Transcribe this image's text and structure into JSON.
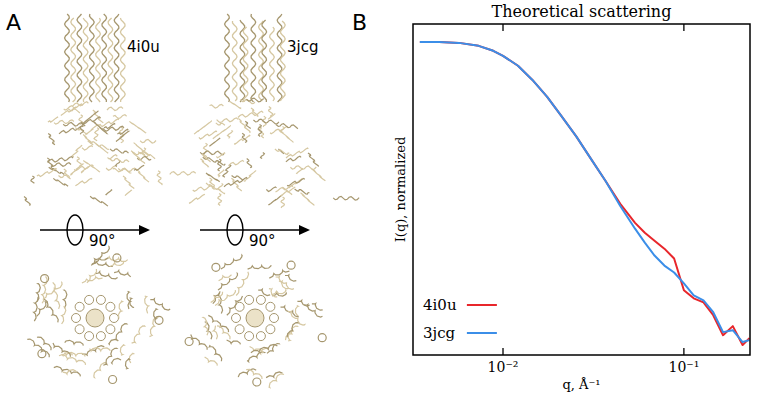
{
  "panel_a": {
    "letter": "A",
    "structures": [
      {
        "label": "4i0u",
        "rotation": "90°"
      },
      {
        "label": "3jcg",
        "rotation": "90°"
      }
    ]
  },
  "panel_b": {
    "letter": "B"
  },
  "chart_data": {
    "type": "line",
    "title": "Theoretical scattering",
    "x_label": "q, Å⁻¹",
    "y_label": "I(q), normalized",
    "x": [
      0.00347,
      0.00445,
      0.00571,
      0.00733,
      0.00883,
      0.01,
      0.0121,
      0.0145,
      0.0175,
      0.0211,
      0.0254,
      0.0307,
      0.0369,
      0.0445,
      0.0537,
      0.0608,
      0.0688,
      0.078,
      0.0883,
      0.1,
      0.1133,
      0.1283,
      0.1453,
      0.1646,
      0.1864,
      0.2111,
      0.2302
    ],
    "series": [
      {
        "name": "4i0u",
        "color": "#e8262b",
        "values": [
          1,
          1,
          0.964,
          0.864,
          0.72,
          0.599,
          0.416,
          0.249,
          0.134,
          0.0645,
          0.031,
          0.0134,
          0.006,
          0.00259,
          0.00129,
          0.000896,
          0.000668,
          0.000499,
          0.000347,
          0.000108,
          8.03e-05,
          6.94e-05,
          4.32e-05,
          2.07e-05,
          2.89e-05,
          1.44e-05,
          1.86e-05
        ]
      },
      {
        "name": "3jcg",
        "color": "#3b8ee8",
        "values": [
          1,
          1,
          0.964,
          0.864,
          0.72,
          0.599,
          0.416,
          0.249,
          0.134,
          0.0645,
          0.031,
          0.0134,
          0.006,
          0.0024,
          0.00104,
          0.000622,
          0.000387,
          0.000268,
          0.000208,
          0.000139,
          8.96e-05,
          7.46e-05,
          4.82e-05,
          2.32e-05,
          2.49e-05,
          1.61e-05,
          1.73e-05
        ]
      }
    ],
    "xlim": [
      0.00318,
      0.232
    ],
    "ylim": [
      1e-05,
      1.93
    ],
    "xticks": [
      {
        "value": 0.01,
        "label": "10⁻²"
      },
      {
        "value": 0.1,
        "label": "10⁻¹"
      }
    ],
    "log": true,
    "grid": false,
    "legend": "lower left",
    "tick_labels": "x"
  }
}
